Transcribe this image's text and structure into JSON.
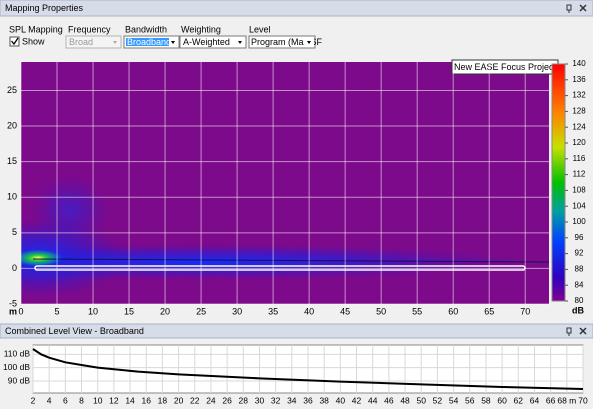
{
  "window": {
    "title": "Mapping Properties"
  },
  "controls": {
    "spl_mapping": {
      "label": "SPL Mapping",
      "checkbox": "Show"
    },
    "frequency": {
      "label": "Frequency",
      "value": "Broad"
    },
    "bandwidth": {
      "label": "Bandwidth",
      "value": "Broadband"
    },
    "weighting": {
      "label": "Weighting",
      "value": "A-Weighted"
    },
    "level": {
      "label": "Level",
      "value": "Program (Max SF"
    }
  },
  "chart_data": [
    {
      "type": "heatmap",
      "annotation": "New EASE Focus Project",
      "x_label": "m",
      "xlim": [
        0,
        73.3
      ],
      "xticks": [
        0,
        5,
        10,
        15,
        20,
        25,
        30,
        35,
        40,
        45,
        50,
        55,
        60,
        65,
        70
      ],
      "ylim": [
        -5,
        29
      ],
      "yticks": [
        -5,
        0,
        5,
        10,
        15,
        20,
        25
      ],
      "grid": true,
      "background": "#7d0a8b",
      "colorbar": {
        "label": "dB",
        "lim": [
          80,
          140
        ],
        "ticks": [
          80,
          84,
          88,
          92,
          96,
          100,
          104,
          108,
          112,
          116,
          120,
          124,
          128,
          132,
          136,
          140
        ]
      }
    },
    {
      "type": "line",
      "title": "Combined Level View - Broadband",
      "x": [
        2,
        3,
        4,
        6,
        8,
        10,
        15,
        20,
        30,
        40,
        50,
        60,
        70
      ],
      "values": [
        114,
        110,
        107.5,
        104,
        102,
        100,
        97,
        95,
        92,
        89.5,
        87.5,
        85.5,
        84
      ],
      "color": "#000000",
      "xlim": [
        2,
        70
      ],
      "xticks": [
        2,
        4,
        6,
        8,
        10,
        12,
        14,
        16,
        18,
        20,
        22,
        24,
        26,
        28,
        30,
        32,
        34,
        36,
        38,
        40,
        42,
        44,
        46,
        48,
        50,
        52,
        54,
        56,
        58,
        60,
        62,
        64,
        66,
        {
          "value": 68,
          "label": "68 m"
        },
        70
      ],
      "ylim": [
        81,
        117
      ],
      "yticks": [
        {
          "value": 90,
          "label": "90 dB"
        },
        {
          "value": 100,
          "label": "100 dB"
        },
        {
          "value": 110,
          "label": "110 dB"
        }
      ],
      "grid": true
    }
  ]
}
